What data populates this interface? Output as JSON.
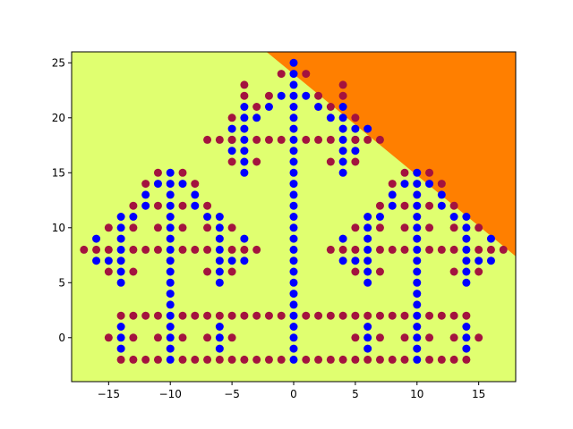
{
  "chart_data": {
    "type": "scatter",
    "title": "",
    "xlabel": "",
    "ylabel": "",
    "xlim": [
      -18,
      18
    ],
    "ylim": [
      -4,
      26
    ],
    "x_ticks": [
      -15,
      -10,
      -5,
      0,
      5,
      10,
      15
    ],
    "y_ticks": [
      0,
      5,
      10,
      15,
      20,
      25
    ],
    "x_tick_labels": [
      "−15",
      "−10",
      "−5",
      "0",
      "5",
      "10",
      "15"
    ],
    "y_tick_labels": [
      "0",
      "5",
      "10",
      "15",
      "20",
      "25"
    ],
    "grid": false,
    "legend": "none",
    "colors": {
      "region_low": "#e0ff70",
      "region_high": "#ff7f00",
      "class_a": "#0000ff",
      "class_b": "#a3133f"
    },
    "decision_boundary": {
      "description": "straight line separating orange region (upper-right) from yellow-green region",
      "points": [
        [
          -2.2,
          26
        ],
        [
          18,
          7.4
        ]
      ]
    },
    "series": [
      {
        "color_key": "class_a",
        "points": [
          [
            0,
            25
          ],
          [
            0,
            24
          ],
          [
            0,
            23
          ],
          [
            0,
            22
          ],
          [
            0,
            21
          ],
          [
            0,
            20
          ],
          [
            0,
            19
          ],
          [
            0,
            18
          ],
          [
            0,
            17
          ],
          [
            0,
            16
          ],
          [
            0,
            15
          ],
          [
            0,
            14
          ],
          [
            0,
            13
          ],
          [
            0,
            12
          ],
          [
            0,
            11
          ],
          [
            0,
            10
          ],
          [
            0,
            9
          ],
          [
            0,
            8
          ],
          [
            0,
            7
          ],
          [
            0,
            6
          ],
          [
            0,
            5
          ],
          [
            0,
            4
          ],
          [
            0,
            3
          ],
          [
            0,
            2
          ],
          [
            0,
            1
          ],
          [
            0,
            0
          ],
          [
            0,
            -1
          ],
          [
            0,
            -2
          ],
          [
            -1,
            22
          ],
          [
            -2,
            21
          ],
          [
            -3,
            20
          ],
          [
            -4,
            19
          ],
          [
            -4,
            21
          ],
          [
            -4,
            20
          ],
          [
            -4,
            18
          ],
          [
            -4,
            17
          ],
          [
            -4,
            16
          ],
          [
            -4,
            15
          ],
          [
            -5,
            19
          ],
          [
            -5,
            18
          ],
          [
            -5,
            17
          ],
          [
            1,
            22
          ],
          [
            2,
            21
          ],
          [
            3,
            20
          ],
          [
            4,
            19
          ],
          [
            4,
            21
          ],
          [
            4,
            20
          ],
          [
            4,
            18
          ],
          [
            4,
            17
          ],
          [
            4,
            16
          ],
          [
            4,
            15
          ],
          [
            5,
            19
          ],
          [
            5,
            18
          ],
          [
            5,
            17
          ],
          [
            6,
            19
          ],
          [
            -10,
            15
          ],
          [
            -10,
            14
          ],
          [
            -10,
            13
          ],
          [
            -10,
            12
          ],
          [
            -10,
            11
          ],
          [
            -10,
            10
          ],
          [
            -10,
            9
          ],
          [
            -10,
            8
          ],
          [
            -10,
            7
          ],
          [
            -10,
            6
          ],
          [
            -10,
            5
          ],
          [
            -10,
            4
          ],
          [
            -10,
            3
          ],
          [
            -10,
            2
          ],
          [
            -10,
            1
          ],
          [
            -10,
            0
          ],
          [
            -10,
            -1
          ],
          [
            -10,
            -2
          ],
          [
            -11,
            14
          ],
          [
            -12,
            13
          ],
          [
            -12,
            12
          ],
          [
            -13,
            11
          ],
          [
            -14,
            11
          ],
          [
            -14,
            10
          ],
          [
            -14,
            9
          ],
          [
            -14,
            8
          ],
          [
            -14,
            7
          ],
          [
            -14,
            6
          ],
          [
            -14,
            5
          ],
          [
            -15,
            7
          ],
          [
            -16,
            9
          ],
          [
            -16,
            7
          ],
          [
            -9,
            14
          ],
          [
            -8,
            13
          ],
          [
            -8,
            12
          ],
          [
            -7,
            11
          ],
          [
            -6,
            11
          ],
          [
            -6,
            10
          ],
          [
            -6,
            9
          ],
          [
            -6,
            8
          ],
          [
            -6,
            7
          ],
          [
            -6,
            6
          ],
          [
            -6,
            5
          ],
          [
            -4,
            9
          ],
          [
            -4,
            7
          ],
          [
            -5,
            7
          ],
          [
            10,
            15
          ],
          [
            10,
            14
          ],
          [
            10,
            13
          ],
          [
            10,
            12
          ],
          [
            10,
            11
          ],
          [
            10,
            10
          ],
          [
            10,
            9
          ],
          [
            10,
            8
          ],
          [
            10,
            7
          ],
          [
            10,
            6
          ],
          [
            10,
            5
          ],
          [
            10,
            4
          ],
          [
            10,
            3
          ],
          [
            10,
            2
          ],
          [
            10,
            1
          ],
          [
            10,
            0
          ],
          [
            10,
            -1
          ],
          [
            10,
            -2
          ],
          [
            11,
            14
          ],
          [
            12,
            13
          ],
          [
            12,
            12
          ],
          [
            13,
            11
          ],
          [
            14,
            11
          ],
          [
            14,
            10
          ],
          [
            14,
            9
          ],
          [
            14,
            8
          ],
          [
            14,
            7
          ],
          [
            14,
            6
          ],
          [
            14,
            5
          ],
          [
            15,
            7
          ],
          [
            16,
            9
          ],
          [
            16,
            7
          ],
          [
            9,
            14
          ],
          [
            8,
            13
          ],
          [
            8,
            12
          ],
          [
            7,
            11
          ],
          [
            6,
            11
          ],
          [
            6,
            10
          ],
          [
            6,
            9
          ],
          [
            6,
            8
          ],
          [
            6,
            7
          ],
          [
            6,
            6
          ],
          [
            6,
            5
          ],
          [
            4,
            9
          ],
          [
            4,
            7
          ],
          [
            5,
            7
          ],
          [
            -14,
            1
          ],
          [
            -14,
            0
          ],
          [
            -14,
            -1
          ],
          [
            -6,
            1
          ],
          [
            -6,
            0
          ],
          [
            -6,
            -1
          ],
          [
            6,
            1
          ],
          [
            6,
            0
          ],
          [
            6,
            -1
          ],
          [
            14,
            1
          ],
          [
            14,
            0
          ],
          [
            14,
            -1
          ]
        ]
      },
      {
        "color_key": "class_b",
        "points": [
          [
            -1,
            24
          ],
          [
            1,
            24
          ],
          [
            -2,
            22
          ],
          [
            2,
            22
          ],
          [
            -3,
            21
          ],
          [
            3,
            21
          ],
          [
            -4,
            22
          ],
          [
            4,
            22
          ],
          [
            -5,
            20
          ],
          [
            5,
            20
          ],
          [
            -6,
            18
          ],
          [
            6,
            18
          ],
          [
            -3,
            16
          ],
          [
            3,
            16
          ],
          [
            -5,
            16
          ],
          [
            5,
            16
          ],
          [
            -7,
            18
          ],
          [
            -5,
            18
          ],
          [
            -3,
            18
          ],
          [
            -2,
            18
          ],
          [
            -1,
            18
          ],
          [
            1,
            18
          ],
          [
            2,
            18
          ],
          [
            3,
            18
          ],
          [
            5,
            18
          ],
          [
            7,
            18
          ],
          [
            -4,
            23
          ],
          [
            4,
            23
          ],
          [
            -11,
            15
          ],
          [
            -9,
            15
          ],
          [
            -12,
            14
          ],
          [
            -8,
            14
          ],
          [
            -13,
            12
          ],
          [
            -11,
            12
          ],
          [
            -9,
            12
          ],
          [
            -7,
            12
          ],
          [
            -15,
            10
          ],
          [
            -13,
            10
          ],
          [
            -11,
            10
          ],
          [
            -9,
            10
          ],
          [
            -7,
            10
          ],
          [
            -5,
            10
          ],
          [
            -17,
            8
          ],
          [
            -16,
            8
          ],
          [
            -15,
            8
          ],
          [
            -13,
            8
          ],
          [
            -12,
            8
          ],
          [
            -11,
            8
          ],
          [
            -9,
            8
          ],
          [
            -8,
            8
          ],
          [
            -7,
            8
          ],
          [
            -5,
            8
          ],
          [
            -4,
            8
          ],
          [
            -3,
            8
          ],
          [
            -15,
            6
          ],
          [
            -13,
            6
          ],
          [
            -7,
            6
          ],
          [
            -5,
            6
          ],
          [
            11,
            15
          ],
          [
            9,
            15
          ],
          [
            12,
            14
          ],
          [
            8,
            14
          ],
          [
            13,
            12
          ],
          [
            11,
            12
          ],
          [
            9,
            12
          ],
          [
            7,
            12
          ],
          [
            15,
            10
          ],
          [
            13,
            10
          ],
          [
            11,
            10
          ],
          [
            9,
            10
          ],
          [
            7,
            10
          ],
          [
            5,
            10
          ],
          [
            17,
            8
          ],
          [
            16,
            8
          ],
          [
            15,
            8
          ],
          [
            13,
            8
          ],
          [
            12,
            8
          ],
          [
            11,
            8
          ],
          [
            9,
            8
          ],
          [
            8,
            8
          ],
          [
            7,
            8
          ],
          [
            5,
            8
          ],
          [
            4,
            8
          ],
          [
            3,
            8
          ],
          [
            15,
            6
          ],
          [
            13,
            6
          ],
          [
            7,
            6
          ],
          [
            5,
            6
          ],
          [
            -14,
            2
          ],
          [
            -13,
            2
          ],
          [
            -12,
            2
          ],
          [
            -11,
            2
          ],
          [
            -9,
            2
          ],
          [
            -8,
            2
          ],
          [
            -7,
            2
          ],
          [
            -6,
            2
          ],
          [
            -5,
            2
          ],
          [
            -4,
            2
          ],
          [
            -3,
            2
          ],
          [
            -2,
            2
          ],
          [
            -1,
            2
          ],
          [
            1,
            2
          ],
          [
            2,
            2
          ],
          [
            3,
            2
          ],
          [
            4,
            2
          ],
          [
            5,
            2
          ],
          [
            6,
            2
          ],
          [
            7,
            2
          ],
          [
            8,
            2
          ],
          [
            9,
            2
          ],
          [
            11,
            2
          ],
          [
            12,
            2
          ],
          [
            13,
            2
          ],
          [
            14,
            2
          ],
          [
            -15,
            0
          ],
          [
            -13,
            0
          ],
          [
            -11,
            0
          ],
          [
            -9,
            0
          ],
          [
            -7,
            0
          ],
          [
            -5,
            0
          ],
          [
            5,
            0
          ],
          [
            7,
            0
          ],
          [
            9,
            0
          ],
          [
            11,
            0
          ],
          [
            13,
            0
          ],
          [
            15,
            0
          ],
          [
            -14,
            -2
          ],
          [
            -13,
            -2
          ],
          [
            -12,
            -2
          ],
          [
            -11,
            -2
          ],
          [
            -9,
            -2
          ],
          [
            -8,
            -2
          ],
          [
            -7,
            -2
          ],
          [
            -6,
            -2
          ],
          [
            -5,
            -2
          ],
          [
            -4,
            -2
          ],
          [
            -3,
            -2
          ],
          [
            -2,
            -2
          ],
          [
            -1,
            -2
          ],
          [
            1,
            -2
          ],
          [
            2,
            -2
          ],
          [
            3,
            -2
          ],
          [
            4,
            -2
          ],
          [
            5,
            -2
          ],
          [
            6,
            -2
          ],
          [
            7,
            -2
          ],
          [
            8,
            -2
          ],
          [
            9,
            -2
          ],
          [
            11,
            -2
          ],
          [
            12,
            -2
          ],
          [
            13,
            -2
          ],
          [
            14,
            -2
          ]
        ]
      }
    ]
  }
}
